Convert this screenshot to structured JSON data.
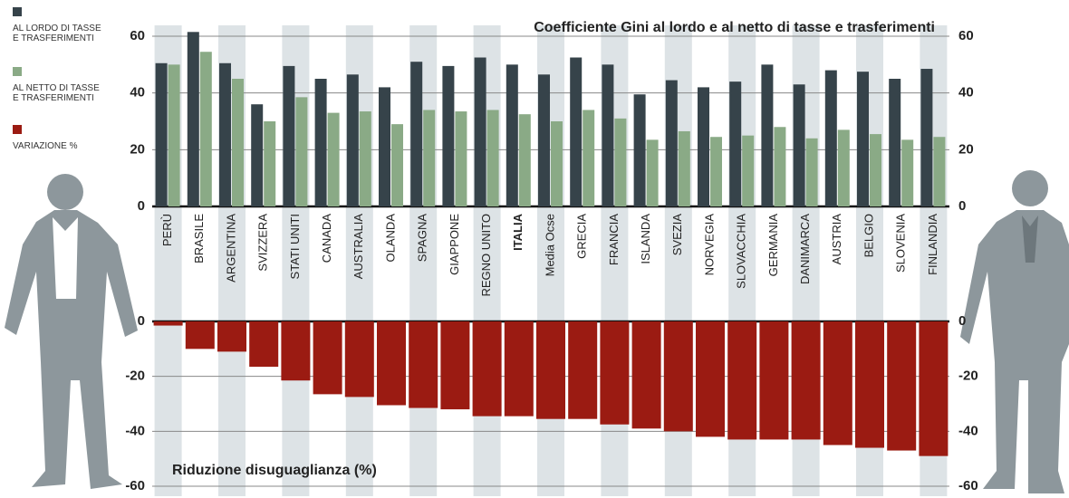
{
  "chart_data": [
    {
      "type": "bar",
      "title": "Coefficiente Gini al lordo e al netto di tasse e trasferimenti",
      "categories": [
        "PERÙ",
        "BRASILE",
        "ARGENTINA",
        "SVIZZERA",
        "STATI UNITI",
        "CANADA",
        "AUSTRALIA",
        "OLANDA",
        "SPAGNA",
        "GIAPPONE",
        "REGNO UNITO",
        "ITALIA",
        "Media Ocse",
        "GRECIA",
        "FRANCIA",
        "ISLANDA",
        "SVEZIA",
        "NORVEGIA",
        "SLOVACCHIA",
        "GERMANIA",
        "DANIMARCA",
        "AUSTRIA",
        "BELGIO",
        "SLOVENIA",
        "FINLANDIA"
      ],
      "highlight": "ITALIA",
      "series": [
        {
          "name": "AL LORDO DI TASSE\nE TRASFERIMENTI",
          "color": "#36434a",
          "values": [
            50.5,
            61.5,
            50.5,
            36,
            49.5,
            45,
            46.5,
            42,
            51,
            49.5,
            52.5,
            50,
            46.5,
            52.5,
            50,
            39.5,
            44.5,
            42,
            44,
            50,
            43,
            48,
            47.5,
            45,
            48.5
          ]
        },
        {
          "name": "AL NETTO DI TASSE\nE TRASFERIMENTI",
          "color": "#8aaa86",
          "values": [
            50,
            54.5,
            45,
            30,
            38.5,
            33,
            33.5,
            29,
            34,
            33.5,
            34,
            32.5,
            30,
            34,
            31,
            23.5,
            26.5,
            24.5,
            25,
            28,
            24,
            27,
            25.5,
            23.5,
            24.5
          ]
        }
      ],
      "ylim": [
        0,
        60
      ],
      "yticks": [
        0,
        20,
        40,
        60
      ],
      "grid": true
    },
    {
      "type": "bar",
      "title": "Riduzione disuguaglianza (%)",
      "series": [
        {
          "name": "VARIAZIONE %",
          "color": "#9b1b12",
          "values": [
            -1.5,
            -10,
            -11,
            -16.5,
            -21.5,
            -26.5,
            -27.5,
            -30.5,
            -31.5,
            -32,
            -34.5,
            -34.5,
            -35.5,
            -35.5,
            -37.5,
            -39,
            -40,
            -42,
            -43,
            -43,
            -43,
            -45,
            -46,
            -47,
            -49
          ]
        }
      ],
      "ylim": [
        -60,
        0
      ],
      "yticks": [
        0,
        -20,
        -40,
        -60
      ],
      "grid": true
    }
  ]
}
